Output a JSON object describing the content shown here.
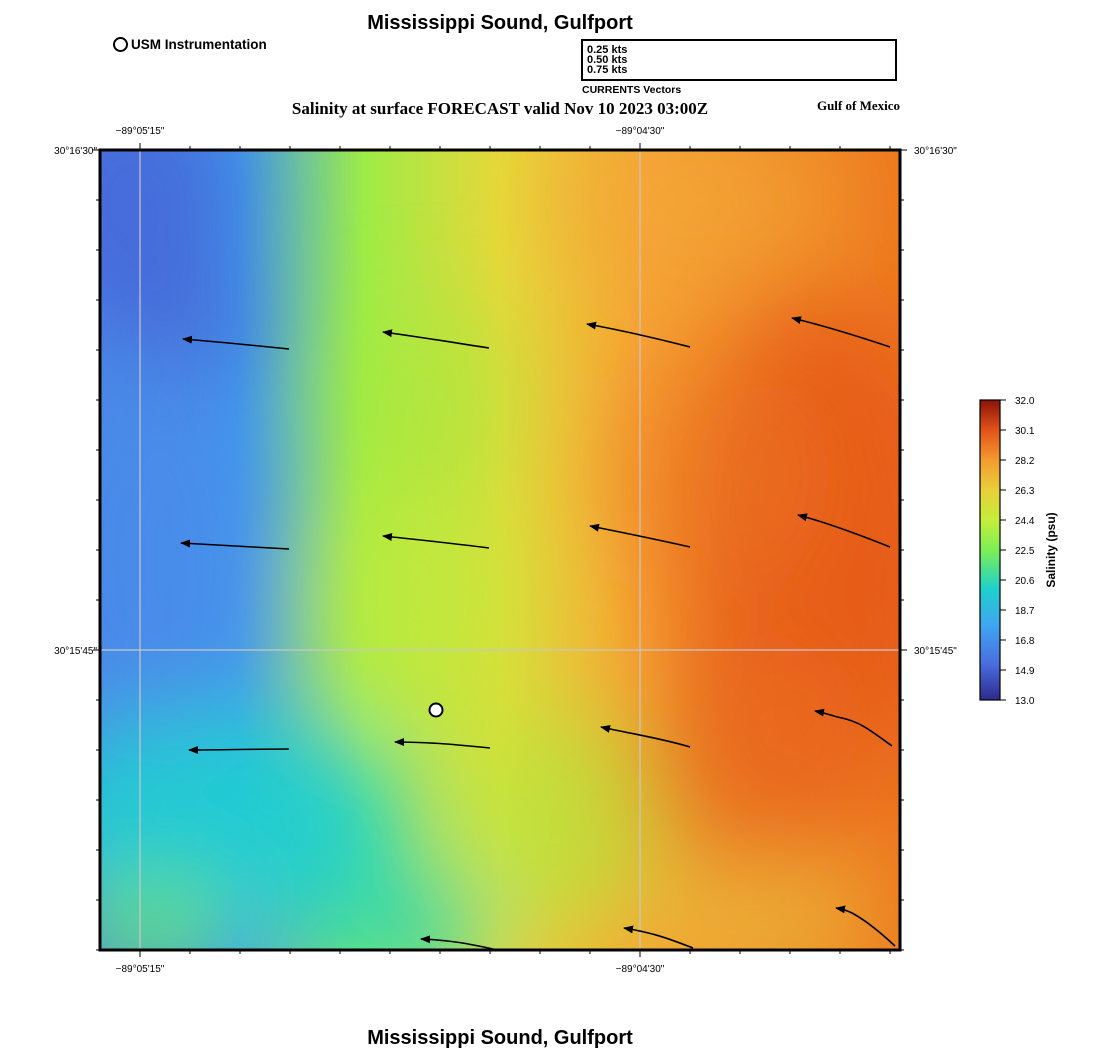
{
  "title": "Mississippi Sound, Gulfport",
  "footer_title": "Mississippi Sound, Gulfport",
  "subtitle": "Salinity at surface FORECAST valid Nov 10 2023 03:00Z",
  "region_label": "Gulf of Mexico",
  "instrument_legend": {
    "label": "USM Instrumentation"
  },
  "vector_legend": {
    "rows": [
      "0.25 kts",
      "0.50 kts",
      "0.75 kts"
    ],
    "caption": "CURRENTS Vectors"
  },
  "axes": {
    "x_ticks": [
      "−89°05'15\"",
      "−89°04'30\""
    ],
    "y_ticks": [
      "30°16'30\"",
      "30°15'45\""
    ]
  },
  "colorbar": {
    "title": "Salinity (psu)",
    "ticks": [
      "32.0",
      "30.1",
      "28.2",
      "26.3",
      "24.4",
      "22.5",
      "20.6",
      "18.7",
      "16.8",
      "14.9",
      "13.0"
    ],
    "min": 13.0,
    "max": 32.0
  },
  "colors": {
    "low": "#2d2a8c",
    "blue": "#4a8ae8",
    "cyan": "#1fd0cc",
    "green": "#a6f03a",
    "yellow": "#e2d53a",
    "orange": "#f7a030",
    "red_orange": "#e85a18",
    "high": "#8a1208"
  }
}
